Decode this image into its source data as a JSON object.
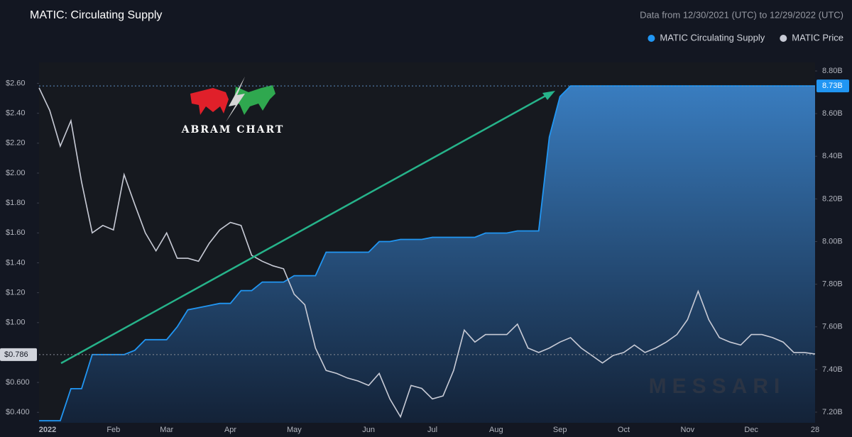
{
  "chart_data": {
    "type": "area_line",
    "title": "MATIC: Circulating Supply",
    "subtitle": "Data from 12/30/2021 (UTC) to 12/29/2022 (UTC)",
    "categories": [
      "2022",
      null,
      null,
      null,
      null,
      null,
      null,
      "Feb",
      null,
      null,
      null,
      null,
      "Mar",
      null,
      null,
      null,
      null,
      null,
      "Apr",
      null,
      null,
      null,
      null,
      null,
      "May",
      null,
      null,
      null,
      null,
      null,
      null,
      "Jun",
      null,
      null,
      null,
      null,
      null,
      "Jul",
      null,
      null,
      null,
      null,
      null,
      "Aug",
      null,
      null,
      null,
      null,
      null,
      "Sep",
      null,
      null,
      null,
      null,
      null,
      "Oct",
      null,
      null,
      null,
      null,
      null,
      "Nov",
      null,
      null,
      null,
      null,
      null,
      "Dec",
      null,
      null,
      null,
      null,
      null,
      "28"
    ],
    "series": [
      {
        "name": "MATIC Circulating Supply",
        "color": "#2196f3",
        "axis": "y2",
        "values": [
          7.16,
          7.16,
          7.16,
          7.31,
          7.31,
          7.47,
          7.47,
          7.47,
          7.47,
          7.49,
          7.54,
          7.54,
          7.54,
          7.6,
          7.68,
          7.69,
          7.7,
          7.71,
          7.71,
          7.77,
          7.77,
          7.81,
          7.81,
          7.81,
          7.84,
          7.84,
          7.84,
          7.95,
          7.95,
          7.95,
          7.95,
          7.95,
          8.0,
          8.0,
          8.01,
          8.01,
          8.01,
          8.02,
          8.02,
          8.02,
          8.02,
          8.02,
          8.04,
          8.04,
          8.04,
          8.05,
          8.05,
          8.05,
          8.49,
          8.68,
          8.73,
          8.73,
          8.73,
          8.73,
          8.73,
          8.73,
          8.73,
          8.73,
          8.73,
          8.73,
          8.73,
          8.73,
          8.73,
          8.73,
          8.73,
          8.73,
          8.73,
          8.73,
          8.73,
          8.73,
          8.73,
          8.73,
          8.73,
          8.73
        ]
      },
      {
        "name": "MATIC Price",
        "color": "#c8cbd6",
        "values": [
          2.57,
          2.42,
          2.18,
          2.35,
          1.94,
          1.6,
          1.65,
          1.62,
          1.99,
          1.79,
          1.6,
          1.48,
          1.6,
          1.43,
          1.43,
          1.41,
          1.53,
          1.62,
          1.67,
          1.65,
          1.45,
          1.41,
          1.38,
          1.36,
          1.19,
          1.12,
          0.83,
          0.68,
          0.66,
          0.63,
          0.61,
          0.58,
          0.66,
          0.49,
          0.37,
          0.58,
          0.56,
          0.49,
          0.51,
          0.68,
          0.95,
          0.87,
          0.92,
          0.92,
          0.92,
          0.99,
          0.83,
          0.8,
          0.83,
          0.87,
          0.9,
          0.83,
          0.78,
          0.73,
          0.78,
          0.8,
          0.85,
          0.8,
          0.83,
          0.87,
          0.92,
          1.02,
          1.21,
          1.02,
          0.9,
          0.87,
          0.85,
          0.92,
          0.92,
          0.9,
          0.87,
          0.8,
          0.8,
          0.79
        ]
      }
    ],
    "ylim": [
      0.33,
      2.74
    ],
    "yticks": [
      {
        "value": 0.4,
        "label": "$0.400"
      },
      {
        "value": 0.6,
        "label": "$0.600"
      },
      {
        "value": 1.0,
        "label": "$1.00"
      },
      {
        "value": 1.2,
        "label": "$1.20"
      },
      {
        "value": 1.4,
        "label": "$1.40"
      },
      {
        "value": 1.6,
        "label": "$1.60"
      },
      {
        "value": 1.8,
        "label": "$1.80"
      },
      {
        "value": 2.0,
        "label": "$2.00"
      },
      {
        "value": 2.2,
        "label": "$2.20"
      },
      {
        "value": 2.4,
        "label": "$2.40"
      },
      {
        "value": 2.6,
        "label": "$2.60"
      }
    ],
    "y2lim": [
      7.15,
      8.84
    ],
    "y2ticks": [
      {
        "value": 7.2,
        "label": "7.20B"
      },
      {
        "value": 7.4,
        "label": "7.40B"
      },
      {
        "value": 7.6,
        "label": "7.60B"
      },
      {
        "value": 7.8,
        "label": "7.80B"
      },
      {
        "value": 8.0,
        "label": "8.00B"
      },
      {
        "value": 8.2,
        "label": "8.20B"
      },
      {
        "value": 8.4,
        "label": "8.40B"
      },
      {
        "value": 8.6,
        "label": "8.60B"
      },
      {
        "value": 8.8,
        "label": "8.80B"
      }
    ],
    "current_price": {
      "value": 0.786,
      "label": "$0.786"
    },
    "current_supply": {
      "value": 8.73,
      "label": "8.73B"
    },
    "logo": "ABRAM CHART",
    "watermark": "MESSARI",
    "grid": false,
    "legend": "top-right"
  }
}
